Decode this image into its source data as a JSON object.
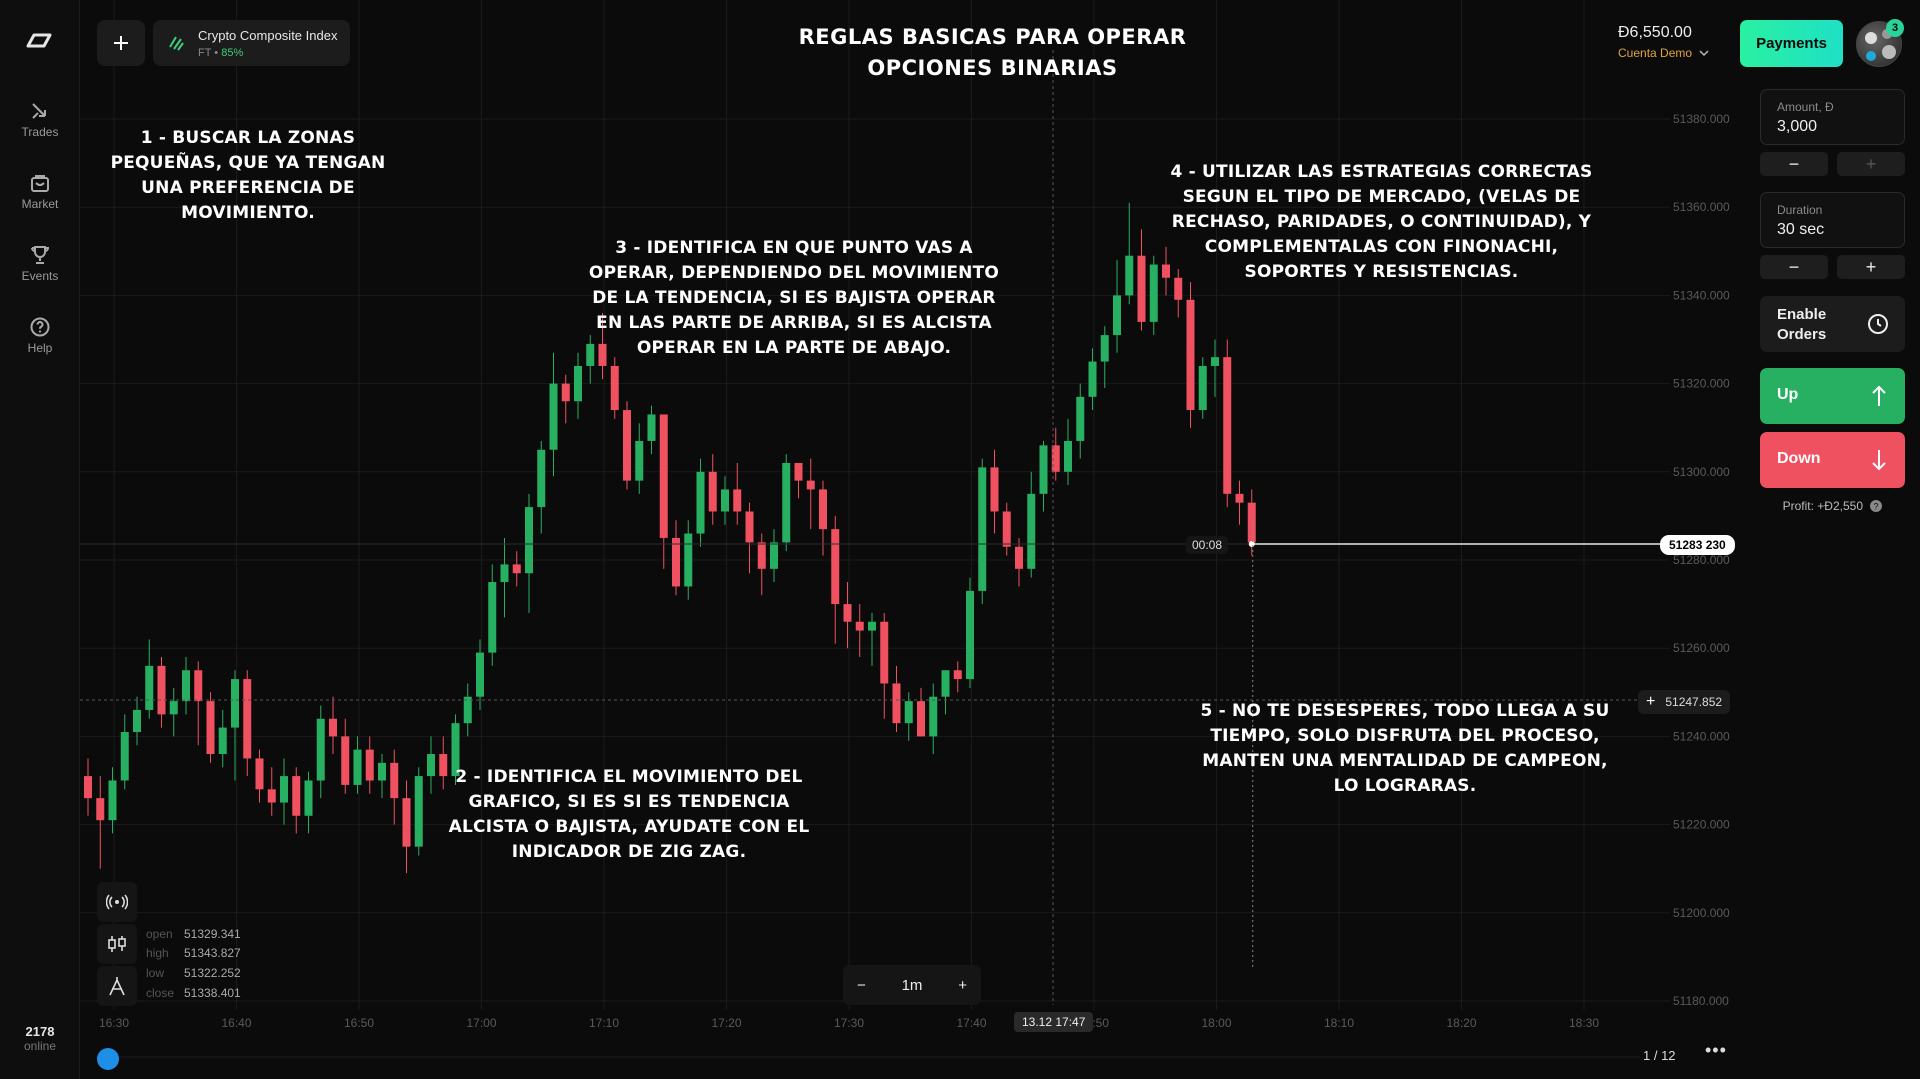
{
  "rail": {
    "items": [
      {
        "label": "Trades",
        "icon": "trades-icon"
      },
      {
        "label": "Market",
        "icon": "market-icon"
      },
      {
        "label": "Events",
        "icon": "trophy-icon"
      },
      {
        "label": "Help",
        "icon": "help-icon"
      }
    ],
    "online_count": "2178",
    "online_label": "online"
  },
  "asset": {
    "name": "Crypto Composite Index",
    "type": "FT",
    "sep": " • ",
    "payout": "85%"
  },
  "title": "Reglas basicas para operar opciones binarias",
  "account": {
    "balance": "Đ6,550.00",
    "name": "Cuenta Demo",
    "payments_label": "Payments",
    "notifications": "3"
  },
  "panel": {
    "amount_label": "Amount, Đ",
    "amount_value": "3,000",
    "duration_label": "Duration",
    "duration_value": "30 sec",
    "orders_label": "Enable Orders",
    "up_label": "Up",
    "down_label": "Down",
    "profit": "Profit: +Đ2,550"
  },
  "notes": {
    "n1": "1 - Buscar la zonas pequeñas, que ya tengan una preferencia de movimiento.",
    "n2": "2 - Identifica el movimiento del grafico, si es si es tendencia alcista o bajista, ayudate con el indicador de zig zag.",
    "n3": "3 - Identifica en que punto vas a operar, dependiendo del movimiento de la tendencia, si es bajista operar en las parte de arriba, si es alcista operar en la parte de abajo.",
    "n4": "4 - Utilizar las estrategias correctas segun el tipo de mercado, (velas de rechaso, paridades, o continuidad), y complementalas con finonachi, soportes y resistencias.",
    "n5": "5 - No te desesperes, todo llega a su tiempo, solo disfruta del proceso, manten una mentalidad de campeon, lo lograras."
  },
  "ohlc": {
    "open": "51329.341",
    "high": "51343.827",
    "low": "51322.252",
    "close": "51338.401"
  },
  "ohlc_labels": {
    "open": "open",
    "high": "high",
    "low": "low",
    "close": "close"
  },
  "timeframe": "1m",
  "timer": "00:08",
  "current_price": "51283 230",
  "ref_price": "51247.852",
  "cursor_time": "13.12 17:47",
  "pager": "1 / 12",
  "colors": {
    "up": "#28b062",
    "down": "#ef5160",
    "accent": "#2af0a2"
  },
  "chart_data": {
    "type": "candlestick",
    "y_ticks": [
      51380,
      51360,
      51340,
      51320,
      51300,
      51280,
      51260,
      51240,
      51220,
      51200,
      51180
    ],
    "y_tick_labels": [
      "51380.000",
      "51360.000",
      "51340.000",
      "51320.000",
      "51300.000",
      "51280.000",
      "51260.000",
      "51240.000",
      "51220.000",
      "51200.000",
      "51180.000"
    ],
    "x_tick_labels": [
      "16:30",
      "16:40",
      "16:50",
      "17:00",
      "17:10",
      "17:20",
      "17:30",
      "17:40",
      "17:50",
      "18:00",
      "18:10",
      "18:20",
      "18:30"
    ],
    "x_range": [
      16.5,
      18.5
    ],
    "ylim": [
      51180,
      51380
    ],
    "candles": [
      [
        51231,
        51226,
        51235,
        51222
      ],
      [
        51226,
        51221,
        51231,
        51210
      ],
      [
        51221,
        51230,
        51233,
        51218
      ],
      [
        51230,
        51241,
        51245,
        51228
      ],
      [
        51241,
        51246,
        51249,
        51238
      ],
      [
        51246,
        51256,
        51262,
        51244
      ],
      [
        51256,
        51245,
        51258,
        51242
      ],
      [
        51245,
        51248,
        51251,
        51240
      ],
      [
        51248,
        51255,
        51258,
        51245
      ],
      [
        51255,
        51248,
        51257,
        51238
      ],
      [
        51248,
        51236,
        51250,
        51234
      ],
      [
        51236,
        51242,
        51246,
        51233
      ],
      [
        51242,
        51253,
        51255,
        51230
      ],
      [
        51253,
        51235,
        51255,
        51231
      ],
      [
        51235,
        51228,
        51237,
        51225
      ],
      [
        51228,
        51225,
        51233,
        51222
      ],
      [
        51225,
        51231,
        51235,
        51220
      ],
      [
        51231,
        51222,
        51233,
        51218
      ],
      [
        51222,
        51230,
        51232,
        51218
      ],
      [
        51230,
        51244,
        51247,
        51226
      ],
      [
        51244,
        51240,
        51249,
        51236
      ],
      [
        51240,
        51229,
        51244,
        51227
      ],
      [
        51229,
        51237,
        51240,
        51227
      ],
      [
        51237,
        51230,
        51240,
        51227
      ],
      [
        51230,
        51234,
        51236,
        51226
      ],
      [
        51234,
        51226,
        51237,
        51220
      ],
      [
        51226,
        51215,
        51230,
        51209
      ],
      [
        51215,
        51231,
        51233,
        51213
      ],
      [
        51231,
        51236,
        51240,
        51227
      ],
      [
        51236,
        51231,
        51240,
        51228
      ],
      [
        51231,
        51243,
        51245,
        51229
      ],
      [
        51243,
        51249,
        51252,
        51240
      ],
      [
        51249,
        51259,
        51262,
        51246
      ],
      [
        51259,
        51275,
        51279,
        51256
      ],
      [
        51275,
        51279,
        51285,
        51267
      ],
      [
        51279,
        51277,
        51282,
        51274
      ],
      [
        51277,
        51292,
        51295,
        51268
      ],
      [
        51292,
        51305,
        51307,
        51286
      ],
      [
        51305,
        51320,
        51327,
        51299
      ],
      [
        51320,
        51316,
        51322,
        51311
      ],
      [
        51316,
        51324,
        51327,
        51312
      ],
      [
        51324,
        51329,
        51331,
        51320
      ],
      [
        51329,
        51324,
        51336,
        51321
      ],
      [
        51324,
        51314,
        51326,
        51312
      ],
      [
        51314,
        51298,
        51316,
        51296
      ],
      [
        51298,
        51307,
        51311,
        51295
      ],
      [
        51307,
        51313,
        51315,
        51304
      ],
      [
        51313,
        51285,
        51313,
        51278
      ],
      [
        51285,
        51274,
        51289,
        51272
      ],
      [
        51274,
        51286,
        51289,
        51271
      ],
      [
        51286,
        51300,
        51303,
        51283
      ],
      [
        51300,
        51291,
        51304,
        51288
      ],
      [
        51291,
        51296,
        51299,
        51288
      ],
      [
        51296,
        51291,
        51302,
        51288
      ],
      [
        51291,
        51284,
        51293,
        51277
      ],
      [
        51284,
        51278,
        51286,
        51272
      ],
      [
        51278,
        51284,
        51287,
        51275
      ],
      [
        51284,
        51302,
        51304,
        51282
      ],
      [
        51302,
        51298,
        51302,
        51294
      ],
      [
        51298,
        51296,
        51303,
        51287
      ],
      [
        51296,
        51287,
        51298,
        51281
      ],
      [
        51287,
        51270,
        51290,
        51261
      ],
      [
        51270,
        51266,
        51275,
        51260
      ],
      [
        51266,
        51264,
        51270,
        51258
      ],
      [
        51264,
        51266,
        51268,
        51256
      ],
      [
        51266,
        51252,
        51268,
        51244
      ],
      [
        51252,
        51243,
        51256,
        51241
      ],
      [
        51243,
        51248,
        51250,
        51239
      ],
      [
        51248,
        51240,
        51251,
        51241
      ],
      [
        51240,
        51249,
        51252,
        51236
      ],
      [
        51249,
        51255,
        51255,
        51245
      ],
      [
        51255,
        51253,
        51257,
        51250
      ],
      [
        51253,
        51273,
        51276,
        51251
      ],
      [
        51273,
        51301,
        51303,
        51270
      ],
      [
        51301,
        51291,
        51305,
        51286
      ],
      [
        51291,
        51283,
        51293,
        51281
      ],
      [
        51283,
        51278,
        51285,
        51274
      ],
      [
        51278,
        51295,
        51300,
        51276
      ],
      [
        51295,
        51306,
        51307,
        51291
      ],
      [
        51306,
        51300,
        51310,
        51298
      ],
      [
        51300,
        51307,
        51312,
        51297
      ],
      [
        51307,
        51317,
        51320,
        51303
      ],
      [
        51317,
        51325,
        51328,
        51314
      ],
      [
        51325,
        51331,
        51333,
        51319
      ],
      [
        51331,
        51340,
        51348,
        51327
      ],
      [
        51340,
        51349,
        51361,
        51338
      ],
      [
        51349,
        51334,
        51355,
        51332
      ],
      [
        51334,
        51347,
        51349,
        51331
      ],
      [
        51347,
        51344,
        51351,
        51340
      ],
      [
        51344,
        51339,
        51346,
        51335
      ],
      [
        51339,
        51314,
        51343,
        51310
      ],
      [
        51314,
        51324,
        51326,
        51312
      ],
      [
        51324,
        51326,
        51330,
        51317
      ],
      [
        51326,
        51295,
        51330,
        51292
      ],
      [
        51295,
        51293,
        51298,
        51288
      ],
      [
        51293,
        51284,
        51296,
        51281
      ]
    ]
  }
}
